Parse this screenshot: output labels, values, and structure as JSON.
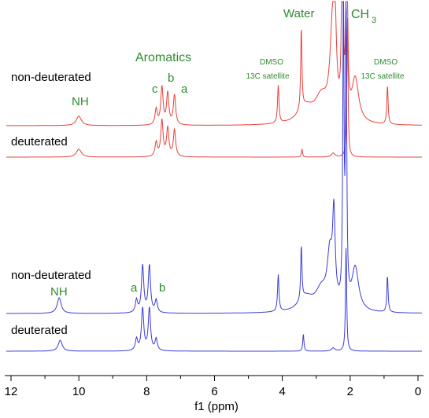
{
  "chart_data": {
    "type": "line",
    "xlabel": "f1 (ppm)",
    "xlim": [
      12.2,
      -0.1
    ],
    "x_ticks": [
      "12",
      "10",
      "8",
      "6",
      "4",
      "2",
      "0"
    ],
    "x_tick_values": [
      12,
      10,
      8,
      6,
      4,
      2,
      0
    ],
    "series": [
      {
        "name": "non-deuterated",
        "group": "top",
        "color": "#e8413b",
        "baseline": 160,
        "peaks": [
          {
            "ppm": 10.0,
            "h": 12,
            "w": 0.09
          },
          {
            "ppm": 7.72,
            "h": 20,
            "w": 0.04
          },
          {
            "ppm": 7.55,
            "h": 48,
            "w": 0.04
          },
          {
            "ppm": 7.38,
            "h": 40,
            "w": 0.04
          },
          {
            "ppm": 7.18,
            "h": 38,
            "w": 0.04
          },
          {
            "ppm": 4.12,
            "h": 48,
            "w": 0.025
          },
          {
            "ppm": 3.44,
            "h": 105,
            "w": 0.022
          },
          {
            "ppm": 3.3,
            "h": 20,
            "w": 0.28
          },
          {
            "ppm": 2.85,
            "h": 30,
            "w": 0.22
          },
          {
            "ppm": 2.52,
            "h": 110,
            "w": 0.09
          },
          {
            "ppm": 2.45,
            "h": 100,
            "w": 0.045
          },
          {
            "ppm": 2.23,
            "h": 400,
            "w": 0.02
          },
          {
            "ppm": 2.1,
            "h": 400,
            "w": 0.02
          },
          {
            "ppm": 1.85,
            "h": 55,
            "w": 0.12
          },
          {
            "ppm": 0.9,
            "h": 50,
            "w": 0.022
          }
        ]
      },
      {
        "name": "deuterated",
        "group": "top",
        "color": "#e8413b",
        "baseline": 200,
        "peaks": [
          {
            "ppm": 10.0,
            "h": 10,
            "w": 0.09
          },
          {
            "ppm": 7.72,
            "h": 18,
            "w": 0.04
          },
          {
            "ppm": 7.55,
            "h": 46,
            "w": 0.04
          },
          {
            "ppm": 7.38,
            "h": 36,
            "w": 0.04
          },
          {
            "ppm": 7.18,
            "h": 34,
            "w": 0.04
          },
          {
            "ppm": 3.42,
            "h": 10,
            "w": 0.02
          },
          {
            "ppm": 2.5,
            "h": 5,
            "w": 0.06
          },
          {
            "ppm": 2.08,
            "h": 180,
            "w": 0.02
          }
        ]
      },
      {
        "name": "non-deuterated",
        "group": "bottom",
        "color": "#3c3cd8",
        "baseline": 399,
        "peaks": [
          {
            "ppm": 10.58,
            "h": 20,
            "w": 0.07
          },
          {
            "ppm": 8.3,
            "h": 16,
            "w": 0.04
          },
          {
            "ppm": 8.12,
            "h": 60,
            "w": 0.04
          },
          {
            "ppm": 7.92,
            "h": 60,
            "w": 0.04
          },
          {
            "ppm": 7.72,
            "h": 16,
            "w": 0.04
          },
          {
            "ppm": 4.12,
            "h": 47,
            "w": 0.025
          },
          {
            "ppm": 3.44,
            "h": 70,
            "w": 0.022
          },
          {
            "ppm": 3.3,
            "h": 18,
            "w": 0.26
          },
          {
            "ppm": 2.85,
            "h": 25,
            "w": 0.2
          },
          {
            "ppm": 2.6,
            "h": 65,
            "w": 0.09
          },
          {
            "ppm": 2.48,
            "h": 110,
            "w": 0.045
          },
          {
            "ppm": 2.2,
            "h": 400,
            "w": 0.02
          },
          {
            "ppm": 2.12,
            "h": 400,
            "w": 0.02
          },
          {
            "ppm": 1.85,
            "h": 55,
            "w": 0.12
          },
          {
            "ppm": 0.9,
            "h": 47,
            "w": 0.022
          }
        ]
      },
      {
        "name": "deuterated",
        "group": "bottom",
        "color": "#3c3cd8",
        "baseline": 447,
        "peaks": [
          {
            "ppm": 10.55,
            "h": 14,
            "w": 0.07
          },
          {
            "ppm": 8.3,
            "h": 15,
            "w": 0.04
          },
          {
            "ppm": 8.12,
            "h": 54,
            "w": 0.04
          },
          {
            "ppm": 7.92,
            "h": 54,
            "w": 0.04
          },
          {
            "ppm": 7.72,
            "h": 15,
            "w": 0.04
          },
          {
            "ppm": 3.38,
            "h": 22,
            "w": 0.02
          },
          {
            "ppm": 2.5,
            "h": 4,
            "w": 0.06
          },
          {
            "ppm": 2.12,
            "h": 136,
            "w": 0.02
          }
        ]
      }
    ],
    "annotations": [
      {
        "text": "Aromatics",
        "size": 16
      },
      {
        "text": "c",
        "size": 15
      },
      {
        "text": "b",
        "size": 15
      },
      {
        "text": "a",
        "size": 15
      },
      {
        "text": "NH",
        "size": 15
      },
      {
        "text": "Water",
        "size": 15
      },
      {
        "text": "CH",
        "size": 16
      },
      {
        "text": "3",
        "size": 11
      },
      {
        "text": "DMSO",
        "size": 10
      },
      {
        "text": "13C satellite",
        "size": 10
      },
      {
        "text": "DMSO",
        "size": 10
      },
      {
        "text": "13C satellite",
        "size": 10
      },
      {
        "text": "NH",
        "size": 15
      },
      {
        "text": "a",
        "size": 15
      },
      {
        "text": "b",
        "size": 15
      }
    ]
  }
}
